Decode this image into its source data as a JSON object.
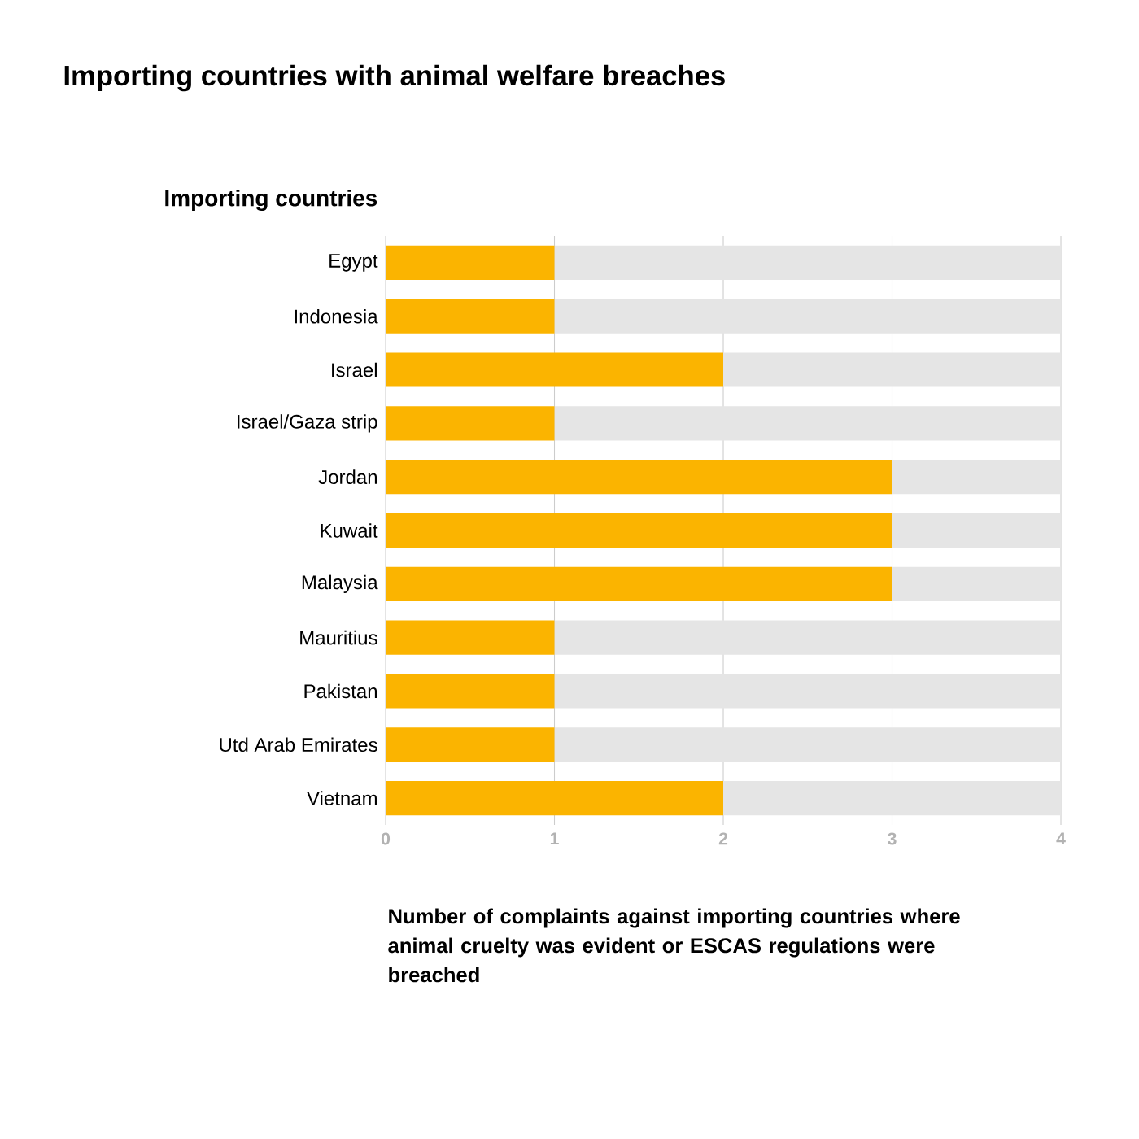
{
  "chart_data": {
    "type": "bar",
    "orientation": "horizontal",
    "stacked": true,
    "title": "Importing countries with animal welfare breaches",
    "ylabel": "Importing countries",
    "xlabel": "Number of complaints against importing countries where animal cruelty was evident or ESCAS regulations were breached",
    "categories": [
      "Egypt",
      "Indonesia",
      "Israel",
      "Israel/Gaza strip",
      "Jordan",
      "Kuwait",
      "Malaysia",
      "Mauritius",
      "Pakistan",
      "Utd Arab Emirates",
      "Vietnam"
    ],
    "series": [
      {
        "color": "#fbb400",
        "values": [
          1,
          1,
          2,
          1,
          3,
          3,
          3,
          1,
          1,
          1,
          2
        ]
      },
      {
        "color": "#e5e5e5",
        "values": [
          3,
          3,
          2,
          3,
          1,
          1,
          1,
          3,
          3,
          3,
          2
        ]
      }
    ],
    "xlim": [
      0,
      4
    ],
    "xticks": [
      0,
      1,
      2,
      3,
      4
    ],
    "grid": "x"
  }
}
